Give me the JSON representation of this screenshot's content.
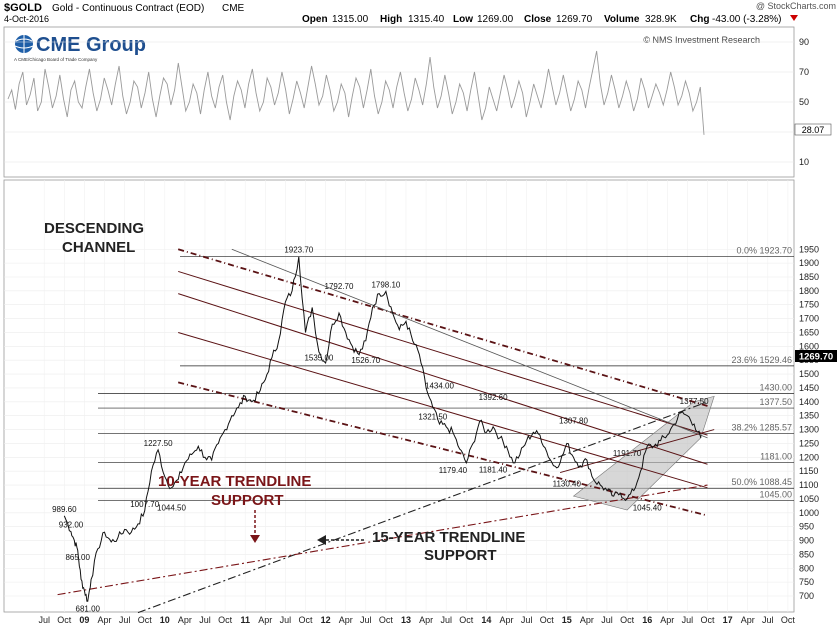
{
  "header": {
    "symbol": "$GOLD",
    "name": "Gold - Continuous Contract (EOD)",
    "exchange": "CME",
    "date": "4-Oct-2016",
    "open_label": "Open",
    "open": "1315.00",
    "high_label": "High",
    "high": "1315.40",
    "low_label": "Low",
    "low": "1269.00",
    "close_label": "Close",
    "close": "1269.70",
    "volume_label": "Volume",
    "volume": "328.9K",
    "chg_label": "Chg",
    "chg": "-43.00 (-3.28%)",
    "watermark": "@ StockCharts.com"
  },
  "logo": {
    "brand": "CME Group",
    "tagline": "A CME/Chicago Board of Trade Company"
  },
  "credit": "© NMS Investment Research",
  "colors": {
    "price": "#111111",
    "rsi": "#9a9a9a",
    "annotation": "#7a1518",
    "channel": "#5a1214",
    "fib_text": "#666666",
    "level_line": "#222222"
  },
  "chart_data": [
    {
      "type": "line",
      "panel": "indicator",
      "series": [
        {
          "values": [
            52,
            58,
            45,
            62,
            70,
            48,
            55,
            66,
            44,
            50,
            72,
            60,
            46,
            54,
            68,
            52,
            40,
            58,
            64,
            50,
            46,
            60,
            72,
            56,
            44,
            52,
            66,
            58,
            48,
            62,
            74,
            54,
            42,
            50,
            64,
            60,
            46,
            56,
            70,
            52,
            40,
            54,
            66,
            62,
            48,
            58,
            76,
            60,
            44,
            50,
            62,
            56,
            42,
            58,
            70,
            54,
            46,
            60,
            68,
            50,
            38,
            54,
            64,
            58,
            46,
            62,
            72,
            56,
            44,
            50,
            66,
            60,
            48,
            56,
            70,
            58,
            42,
            52,
            64,
            56,
            46,
            60,
            74,
            62,
            48,
            54,
            68,
            58,
            44,
            50,
            62,
            56,
            40,
            54,
            66,
            60,
            46,
            58,
            72,
            54,
            42,
            50,
            64,
            58,
            46,
            60,
            70,
            56,
            44,
            52,
            66,
            58,
            48,
            62,
            80,
            60,
            46,
            54,
            68,
            56,
            42,
            50,
            62,
            56,
            44,
            58,
            70,
            54,
            38,
            46,
            60,
            52,
            44,
            56,
            68,
            58,
            46,
            54,
            64,
            56,
            40,
            50,
            62,
            54,
            46,
            58,
            72,
            60,
            48,
            56,
            68,
            56,
            44,
            52,
            64,
            58,
            46,
            60,
            72,
            84,
            62,
            48,
            56,
            68,
            58,
            46,
            54,
            64,
            56,
            44,
            52,
            66,
            58,
            46,
            54,
            62,
            56,
            48,
            58,
            70,
            60,
            48,
            54,
            64,
            56,
            44,
            50,
            60,
            28.07
          ]
        }
      ],
      "ylim": [
        0,
        100
      ],
      "yticks": [
        10,
        30,
        50,
        70,
        90
      ],
      "last_value": "28.07"
    },
    {
      "type": "line",
      "panel": "price",
      "x_unit": "months since Jan 2008",
      "series": [
        {
          "values": [
            [
              9,
              989
            ],
            [
              10,
              932
            ],
            [
              10.5,
              900
            ],
            [
              11,
              865
            ],
            [
              11.5,
              760
            ],
            [
              12,
              720
            ],
            [
              12.5,
              681
            ],
            [
              13,
              760
            ],
            [
              14,
              870
            ],
            [
              15,
              930
            ],
            [
              16,
              895
            ],
            [
              17,
              910
            ],
            [
              18,
              940
            ],
            [
              19,
              930
            ],
            [
              20,
              960
            ],
            [
              21,
              1007
            ],
            [
              22,
              1150
            ],
            [
              23,
              1227
            ],
            [
              24,
              1130
            ],
            [
              25,
              1090
            ],
            [
              26,
              1120
            ],
            [
              27,
              1180
            ],
            [
              28,
              1210
            ],
            [
              29,
              1240
            ],
            [
              30,
              1200
            ],
            [
              31,
              1190
            ],
            [
              32,
              1250
            ],
            [
              33,
              1300
            ],
            [
              34,
              1350
            ],
            [
              35,
              1380
            ],
            [
              36,
              1420
            ],
            [
              37,
              1400
            ],
            [
              38,
              1430
            ],
            [
              39,
              1480
            ],
            [
              40,
              1560
            ],
            [
              41,
              1620
            ],
            [
              42,
              1760
            ],
            [
              43,
              1800
            ],
            [
              44,
              1923
            ],
            [
              45,
              1650
            ],
            [
              46,
              1740
            ],
            [
              47,
              1580
            ],
            [
              48,
              1540
            ],
            [
              49,
              1680
            ],
            [
              50,
              1720
            ],
            [
              51,
              1650
            ],
            [
              52,
              1600
            ],
            [
              53,
              1570
            ],
            [
              54,
              1620
            ],
            [
              55,
              1740
            ],
            [
              56,
              1790
            ],
            [
              57,
              1798
            ],
            [
              58,
              1720
            ],
            [
              59,
              1660
            ],
            [
              60,
              1690
            ],
            [
              61,
              1620
            ],
            [
              62,
              1570
            ],
            [
              63,
              1450
            ],
            [
              64,
              1380
            ],
            [
              65,
              1320
            ],
            [
              66,
              1310
            ],
            [
              67,
              1290
            ],
            [
              68,
              1230
            ],
            [
              69,
              1180
            ],
            [
              70,
              1250
            ],
            [
              71,
              1330
            ],
            [
              72,
              1290
            ],
            [
              73,
              1310
            ],
            [
              74,
              1270
            ],
            [
              75,
              1240
            ],
            [
              76,
              1180
            ],
            [
              77,
              1210
            ],
            [
              78,
              1260
            ],
            [
              79,
              1290
            ],
            [
              80,
              1280
            ],
            [
              81,
              1220
            ],
            [
              82,
              1170
            ],
            [
              83,
              1180
            ],
            [
              84,
              1250
            ],
            [
              85,
              1200
            ],
            [
              86,
              1170
            ],
            [
              87,
              1190
            ],
            [
              88,
              1120
            ],
            [
              89,
              1100
            ],
            [
              90,
              1080
            ],
            [
              91,
              1060
            ],
            [
              92,
              1070
            ],
            [
              93,
              1050
            ],
            [
              94,
              1080
            ],
            [
              95,
              1150
            ],
            [
              96,
              1240
            ],
            [
              97,
              1240
            ],
            [
              98,
              1260
            ],
            [
              99,
              1280
            ],
            [
              100,
              1320
            ],
            [
              101,
              1360
            ],
            [
              102,
              1350
            ],
            [
              103,
              1320
            ],
            [
              104,
              1269.7
            ]
          ]
        }
      ],
      "ylim": [
        660,
        1990
      ],
      "yticks": [
        700,
        750,
        800,
        850,
        900,
        950,
        1000,
        1050,
        1100,
        1150,
        1200,
        1250,
        1300,
        1350,
        1400,
        1450,
        1500,
        1550,
        1600,
        1650,
        1700,
        1750,
        1800,
        1850,
        1900,
        1950
      ],
      "last_value": "1269.70",
      "x_tick_labels": [
        {
          "label": "Jul",
          "m": 6
        },
        {
          "label": "Oct",
          "m": 9
        },
        {
          "label": "09",
          "m": 12
        },
        {
          "label": "Apr",
          "m": 15
        },
        {
          "label": "Jul",
          "m": 18
        },
        {
          "label": "Oct",
          "m": 21
        },
        {
          "label": "10",
          "m": 24
        },
        {
          "label": "Apr",
          "m": 27
        },
        {
          "label": "Jul",
          "m": 30
        },
        {
          "label": "Oct",
          "m": 33
        },
        {
          "label": "11",
          "m": 36
        },
        {
          "label": "Apr",
          "m": 39
        },
        {
          "label": "Jul",
          "m": 42
        },
        {
          "label": "Oct",
          "m": 45
        },
        {
          "label": "12",
          "m": 48
        },
        {
          "label": "Apr",
          "m": 51
        },
        {
          "label": "Jul",
          "m": 54
        },
        {
          "label": "Oct",
          "m": 57
        },
        {
          "label": "13",
          "m": 60
        },
        {
          "label": "Apr",
          "m": 63
        },
        {
          "label": "Jul",
          "m": 66
        },
        {
          "label": "Oct",
          "m": 69
        },
        {
          "label": "14",
          "m": 72
        },
        {
          "label": "Apr",
          "m": 75
        },
        {
          "label": "Jul",
          "m": 78
        },
        {
          "label": "Oct",
          "m": 81
        },
        {
          "label": "15",
          "m": 84
        },
        {
          "label": "Apr",
          "m": 87
        },
        {
          "label": "Jul",
          "m": 90
        },
        {
          "label": "Oct",
          "m": 93
        },
        {
          "label": "16",
          "m": 96
        },
        {
          "label": "Apr",
          "m": 99
        },
        {
          "label": "Jul",
          "m": 102
        },
        {
          "label": "Oct",
          "m": 105
        },
        {
          "label": "17",
          "m": 108
        },
        {
          "label": "Apr",
          "m": 111
        },
        {
          "label": "Jul",
          "m": 114
        },
        {
          "label": "Oct",
          "m": 117
        }
      ],
      "point_labels": [
        {
          "text": "989.60",
          "m": 9,
          "v": 989
        },
        {
          "text": "932.00",
          "m": 10,
          "v": 932
        },
        {
          "text": "865.00",
          "m": 11,
          "v": 865
        },
        {
          "text": "681.00",
          "m": 12.5,
          "v": 681
        },
        {
          "text": "1007.70",
          "m": 21,
          "v": 1007
        },
        {
          "text": "1227.50",
          "m": 23,
          "v": 1227
        },
        {
          "text": "1044.50",
          "m": 25,
          "v": 1044
        },
        {
          "text": "1923.70",
          "m": 44,
          "v": 1923
        },
        {
          "text": "1535.00",
          "m": 47,
          "v": 1535
        },
        {
          "text": "1792.70",
          "m": 50,
          "v": 1792
        },
        {
          "text": "1526.70",
          "m": 54,
          "v": 1526
        },
        {
          "text": "1798.10",
          "m": 57,
          "v": 1798
        },
        {
          "text": "1434.00",
          "m": 65,
          "v": 1434
        },
        {
          "text": "1321.50",
          "m": 64,
          "v": 1321
        },
        {
          "text": "1392.60",
          "m": 73,
          "v": 1392
        },
        {
          "text": "1179.40",
          "m": 67,
          "v": 1179
        },
        {
          "text": "1181.40",
          "m": 73,
          "v": 1181
        },
        {
          "text": "1307.80",
          "m": 85,
          "v": 1307
        },
        {
          "text": "1130.40",
          "m": 84,
          "v": 1130
        },
        {
          "text": "1191.70",
          "m": 93,
          "v": 1191
        },
        {
          "text": "1045.40",
          "m": 96,
          "v": 1045
        },
        {
          "text": "1377.50",
          "m": 103,
          "v": 1377
        }
      ],
      "fib_levels": [
        {
          "pct": "0.0%",
          "value": "1923.70",
          "v": 1923.7
        },
        {
          "pct": "23.6%",
          "value": "1529.46",
          "v": 1529.46
        },
        {
          "pct": "",
          "value": "1430.00",
          "v": 1430
        },
        {
          "pct": "",
          "value": "1377.50",
          "v": 1377.5
        },
        {
          "pct": "38.2%",
          "value": "1285.57",
          "v": 1285.57
        },
        {
          "pct": "",
          "value": "1181.00",
          "v": 1181
        },
        {
          "pct": "50.0%",
          "value": "1088.45",
          "v": 1088.45
        },
        {
          "pct": "",
          "value": "1045.00",
          "v": 1045
        }
      ],
      "annotations": [
        {
          "text": "DESCENDING",
          "group": "descending"
        },
        {
          "text": "CHANNEL",
          "group": "descending"
        },
        {
          "text": "10-YEAR TRENDLINE",
          "group": "ten"
        },
        {
          "text": "SUPPORT",
          "group": "ten"
        },
        {
          "text": "15-YEAR TRENDLINE",
          "group": "fifteen"
        },
        {
          "text": "SUPPORT",
          "group": "fifteen"
        }
      ]
    }
  ]
}
